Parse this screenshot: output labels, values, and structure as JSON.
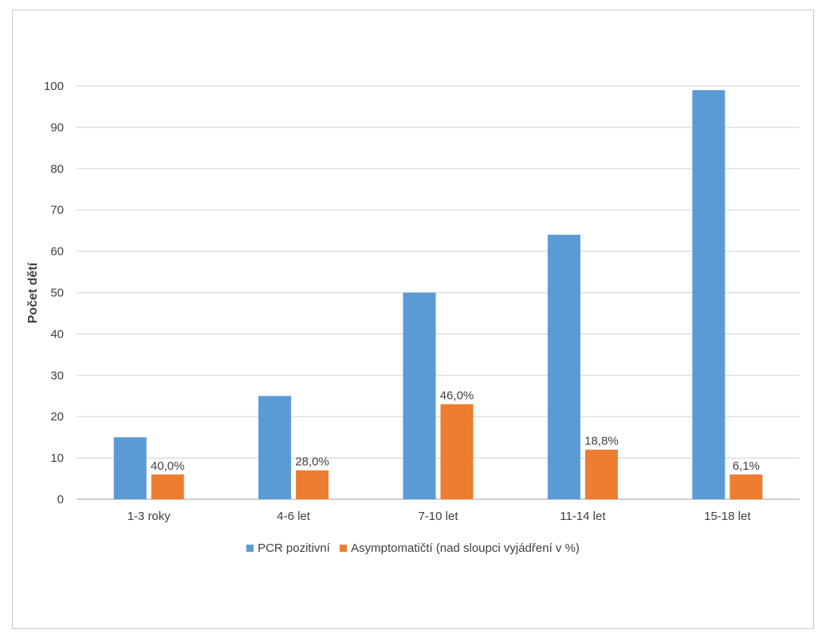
{
  "chart_data": {
    "type": "bar",
    "title": "",
    "xlabel": "",
    "ylabel": "Počet dětí",
    "categories": [
      "1-3 roky",
      "4-6 let",
      "7-10 let",
      "11-14 let",
      "15-18 let"
    ],
    "ylim": [
      0,
      100
    ],
    "yticks": [
      0,
      10,
      20,
      30,
      40,
      50,
      60,
      70,
      80,
      90,
      100
    ],
    "grid": true,
    "legend_position": "bottom",
    "series": [
      {
        "name": "PCR pozitivní",
        "color": "#5b9bd5",
        "values": [
          15,
          25,
          50,
          64,
          99
        ]
      },
      {
        "name": "Asymptomatičtí (nad sloupci vyjádření v %)",
        "color": "#ed7d31",
        "values": [
          6,
          7,
          23,
          12,
          6
        ],
        "data_labels": [
          "40,0%",
          "28,0%",
          "46,0%",
          "18,8%",
          "6,1%"
        ]
      }
    ]
  }
}
